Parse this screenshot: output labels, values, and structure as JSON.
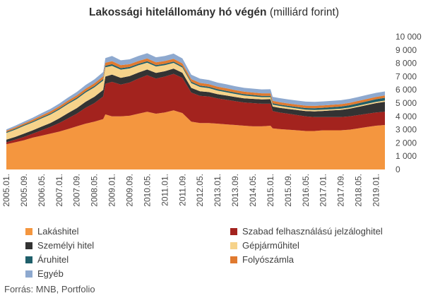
{
  "title_bold": "Lakossági hitelállomány hó végén",
  "title_rest": " (milliárd forint)",
  "source": "Forrás: MNB, Portfolio",
  "chart_data": {
    "type": "area",
    "stacked": true,
    "ylim": [
      0,
      10000
    ],
    "yticks": [
      "0",
      "1 000",
      "2 000",
      "3 000",
      "4 000",
      "5 000",
      "6 000",
      "7 000",
      "8 000",
      "9 000",
      "10 000"
    ],
    "x": [
      "2005.01.",
      "2005.05.",
      "2005.09.",
      "2006.01.",
      "2006.05.",
      "2006.09.",
      "2007.01.",
      "2007.05.",
      "2007.09.",
      "2008.01.",
      "2008.05.",
      "2008.09.",
      "2008.10.",
      "2009.01.",
      "2009.05.",
      "2009.09.",
      "2010.01.",
      "2010.05.",
      "2010.09.",
      "2011.01.",
      "2011.05.",
      "2011.09.",
      "2012.01.",
      "2012.05.",
      "2012.09.",
      "2013.01.",
      "2013.05.",
      "2013.09.",
      "2014.01.",
      "2014.05.",
      "2014.09.",
      "2015.01.",
      "2015.02.",
      "2015.05.",
      "2015.09.",
      "2016.01.",
      "2016.05.",
      "2016.09.",
      "2017.01.",
      "2017.05.",
      "2017.09.",
      "2018.01.",
      "2018.05.",
      "2018.09.",
      "2019.01.",
      "2019.05."
    ],
    "xtick_labels": [
      "2005.01.",
      "2005.09.",
      "2006.05.",
      "2007.01.",
      "2007.09.",
      "2008.05.",
      "2009.01.",
      "2009.09.",
      "2010.05.",
      "2011.01.",
      "2011.09.",
      "2012.05.",
      "2013.01.",
      "2013.09.",
      "2014.05.",
      "2015.01.",
      "2015.09.",
      "2016.05.",
      "2017.01.",
      "2017.09.",
      "2018.05.",
      "2019.01."
    ],
    "legend_position": "bottom",
    "series": [
      {
        "name": "Lakáshitel",
        "color": "#F4963F",
        "values": [
          1900,
          2050,
          2200,
          2400,
          2550,
          2700,
          2850,
          3050,
          3250,
          3450,
          3600,
          3800,
          4150,
          4000,
          4000,
          4050,
          4200,
          4350,
          4200,
          4300,
          4450,
          4250,
          3600,
          3500,
          3500,
          3450,
          3400,
          3350,
          3300,
          3250,
          3250,
          3300,
          3100,
          3050,
          3000,
          2950,
          2900,
          2900,
          2950,
          2950,
          2950,
          3000,
          3100,
          3200,
          3300,
          3350
        ]
      },
      {
        "name": "Szabad felhasználású jelzáloghitel",
        "color": "#A3231E",
        "values": [
          150,
          200,
          250,
          300,
          400,
          500,
          650,
          800,
          950,
          1200,
          1400,
          1700,
          2300,
          2600,
          2400,
          2500,
          2650,
          2750,
          2650,
          2700,
          2750,
          2650,
          2200,
          2050,
          2000,
          1900,
          1850,
          1800,
          1750,
          1750,
          1700,
          1650,
          1300,
          1250,
          1200,
          1150,
          1100,
          1050,
          1000,
          1000,
          1000,
          1000,
          1000,
          1000,
          1000,
          1000
        ]
      },
      {
        "name": "Személyi hitel",
        "color": "#333333",
        "values": [
          200,
          200,
          250,
          250,
          280,
          300,
          350,
          400,
          420,
          450,
          480,
          500,
          550,
          550,
          500,
          480,
          450,
          430,
          420,
          400,
          400,
          380,
          350,
          340,
          330,
          320,
          320,
          310,
          310,
          320,
          330,
          340,
          340,
          350,
          360,
          380,
          400,
          430,
          460,
          500,
          540,
          580,
          620,
          660,
          700,
          750
        ]
      },
      {
        "name": "Gépjárműhitel",
        "color": "#F6D38B",
        "values": [
          500,
          550,
          580,
          600,
          620,
          640,
          660,
          680,
          690,
          700,
          710,
          700,
          700,
          660,
          620,
          580,
          550,
          520,
          490,
          460,
          430,
          400,
          360,
          330,
          300,
          270,
          250,
          230,
          210,
          190,
          170,
          160,
          150,
          140,
          130,
          120,
          110,
          105,
          100,
          95,
          90,
          90,
          90,
          90,
          90,
          90
        ]
      },
      {
        "name": "Áruhitel",
        "color": "#1F5F6A",
        "values": [
          70,
          70,
          75,
          75,
          80,
          80,
          85,
          90,
          95,
          100,
          105,
          110,
          115,
          120,
          115,
          110,
          110,
          105,
          100,
          100,
          100,
          100,
          100,
          100,
          100,
          100,
          100,
          100,
          100,
          100,
          100,
          100,
          100,
          100,
          100,
          110,
          120,
          130,
          140,
          150,
          160,
          170,
          180,
          190,
          200,
          210
        ]
      },
      {
        "name": "Folyószámla",
        "color": "#E07A2F",
        "values": [
          100,
          110,
          120,
          130,
          140,
          150,
          160,
          170,
          180,
          190,
          200,
          210,
          220,
          230,
          220,
          210,
          210,
          210,
          210,
          210,
          210,
          210,
          200,
          200,
          200,
          200,
          195,
          190,
          190,
          190,
          190,
          190,
          185,
          185,
          185,
          180,
          180,
          180,
          180,
          180,
          180,
          180,
          180,
          180,
          180,
          180
        ]
      },
      {
        "name": "Egyéb",
        "color": "#8EA9CF",
        "values": [
          100,
          120,
          130,
          150,
          170,
          190,
          210,
          230,
          250,
          270,
          290,
          320,
          360,
          390,
          370,
          370,
          380,
          390,
          380,
          380,
          390,
          370,
          330,
          320,
          310,
          300,
          300,
          290,
          290,
          290,
          290,
          300,
          300,
          300,
          300,
          300,
          300,
          300,
          300,
          300,
          300,
          300,
          300,
          300,
          300,
          300
        ]
      }
    ]
  }
}
